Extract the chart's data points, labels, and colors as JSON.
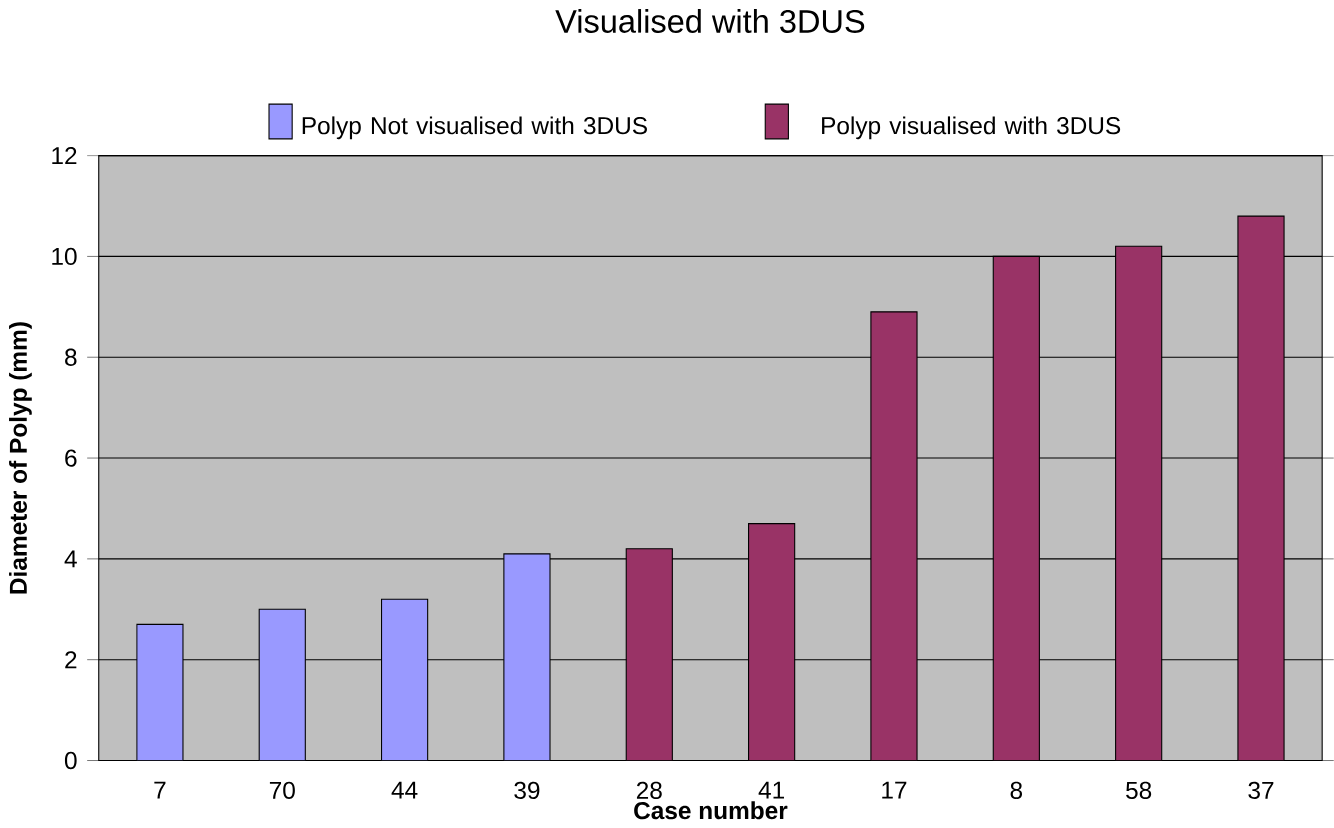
{
  "chart_data": {
    "type": "bar",
    "title": "Visualised with 3DUS",
    "xlabel": "Case number",
    "ylabel": "Diameter of Polyp (mm)",
    "categories": [
      "7",
      "70",
      "44",
      "39",
      "28",
      "41",
      "17",
      "8",
      "58",
      "37"
    ],
    "series": [
      {
        "name": "Polyp Not visualised with 3DUS",
        "color": "#9999ff",
        "values": [
          2.7,
          3.0,
          3.2,
          4.1,
          null,
          null,
          null,
          null,
          null,
          null
        ]
      },
      {
        "name": "Polyp visualised with 3DUS",
        "color": "#993366",
        "values": [
          null,
          null,
          null,
          null,
          4.2,
          4.7,
          8.9,
          10.0,
          10.2,
          10.8
        ]
      }
    ],
    "ylim": [
      0,
      12
    ],
    "yticks": [
      0,
      2,
      4,
      6,
      8,
      10,
      12
    ],
    "grid": "y",
    "legend": "top"
  }
}
